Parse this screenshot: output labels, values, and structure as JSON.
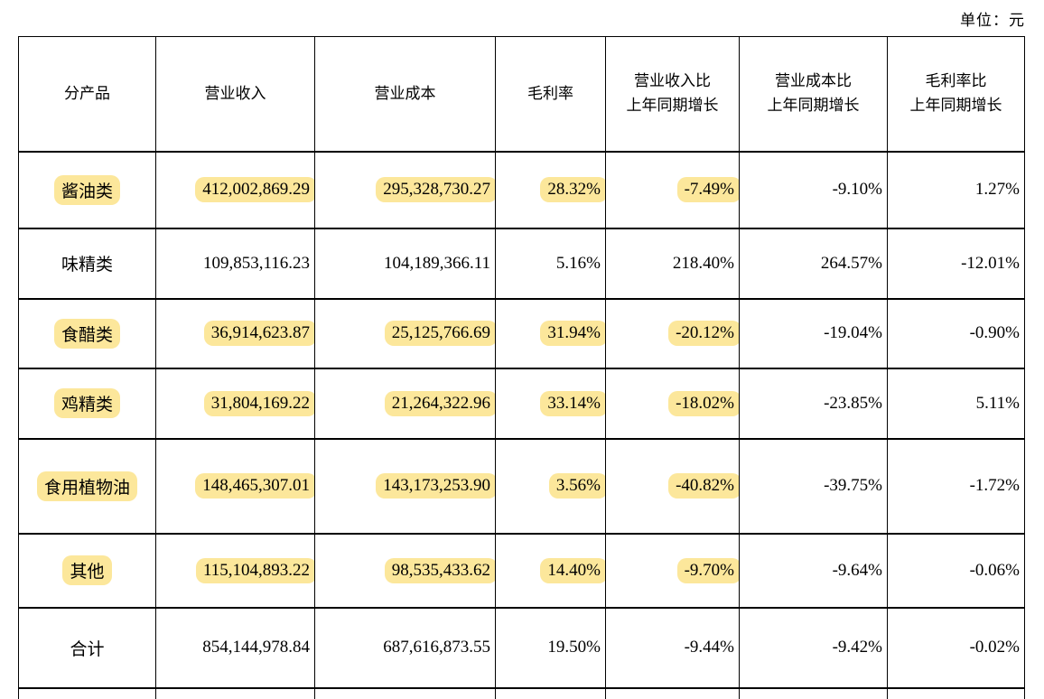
{
  "unit_label": "单位：元",
  "colors": {
    "highlight": "#fce79b",
    "border": "#000000",
    "text": "#000000",
    "background": "#ffffff"
  },
  "table": {
    "columns": [
      {
        "label": "分产品"
      },
      {
        "label": "营业收入"
      },
      {
        "label": "营业成本"
      },
      {
        "label": "毛利率"
      },
      {
        "label": "营业收入比\n上年同期增长"
      },
      {
        "label": "营业成本比\n上年同期增长"
      },
      {
        "label": "毛利率比\n上年同期增长"
      }
    ],
    "rows": [
      {
        "cells": [
          "酱油类",
          "412,002,869.29",
          "295,328,730.27",
          "28.32%",
          "-7.49%",
          "-9.10%",
          "1.27%"
        ],
        "highlight": [
          0,
          1,
          2,
          3,
          4
        ]
      },
      {
        "cells": [
          "味精类",
          "109,853,116.23",
          "104,189,366.11",
          "5.16%",
          "218.40%",
          "264.57%",
          "-12.01%"
        ],
        "highlight": []
      },
      {
        "cells": [
          "食醋类",
          "36,914,623.87",
          "25,125,766.69",
          "31.94%",
          "-20.12%",
          "-19.04%",
          "-0.90%"
        ],
        "highlight": [
          0,
          1,
          2,
          3,
          4
        ]
      },
      {
        "cells": [
          "鸡精类",
          "31,804,169.22",
          "21,264,322.96",
          "33.14%",
          "-18.02%",
          "-23.85%",
          "5.11%"
        ],
        "highlight": [
          0,
          1,
          2,
          3,
          4
        ]
      },
      {
        "cells": [
          "食用植物油",
          "148,465,307.01",
          "143,173,253.90",
          "3.56%",
          "-40.82%",
          "-39.75%",
          "-1.72%"
        ],
        "highlight": [
          0,
          1,
          2,
          3,
          4
        ]
      },
      {
        "cells": [
          "其他",
          "115,104,893.22",
          "98,535,433.62",
          "14.40%",
          "-9.70%",
          "-9.64%",
          "-0.06%"
        ],
        "highlight": [
          0,
          1,
          2,
          3,
          4
        ]
      },
      {
        "cells": [
          "合计",
          "854,144,978.84",
          "687,616,873.55",
          "19.50%",
          "-9.44%",
          "-9.42%",
          "-0.02%"
        ],
        "highlight": []
      }
    ]
  }
}
